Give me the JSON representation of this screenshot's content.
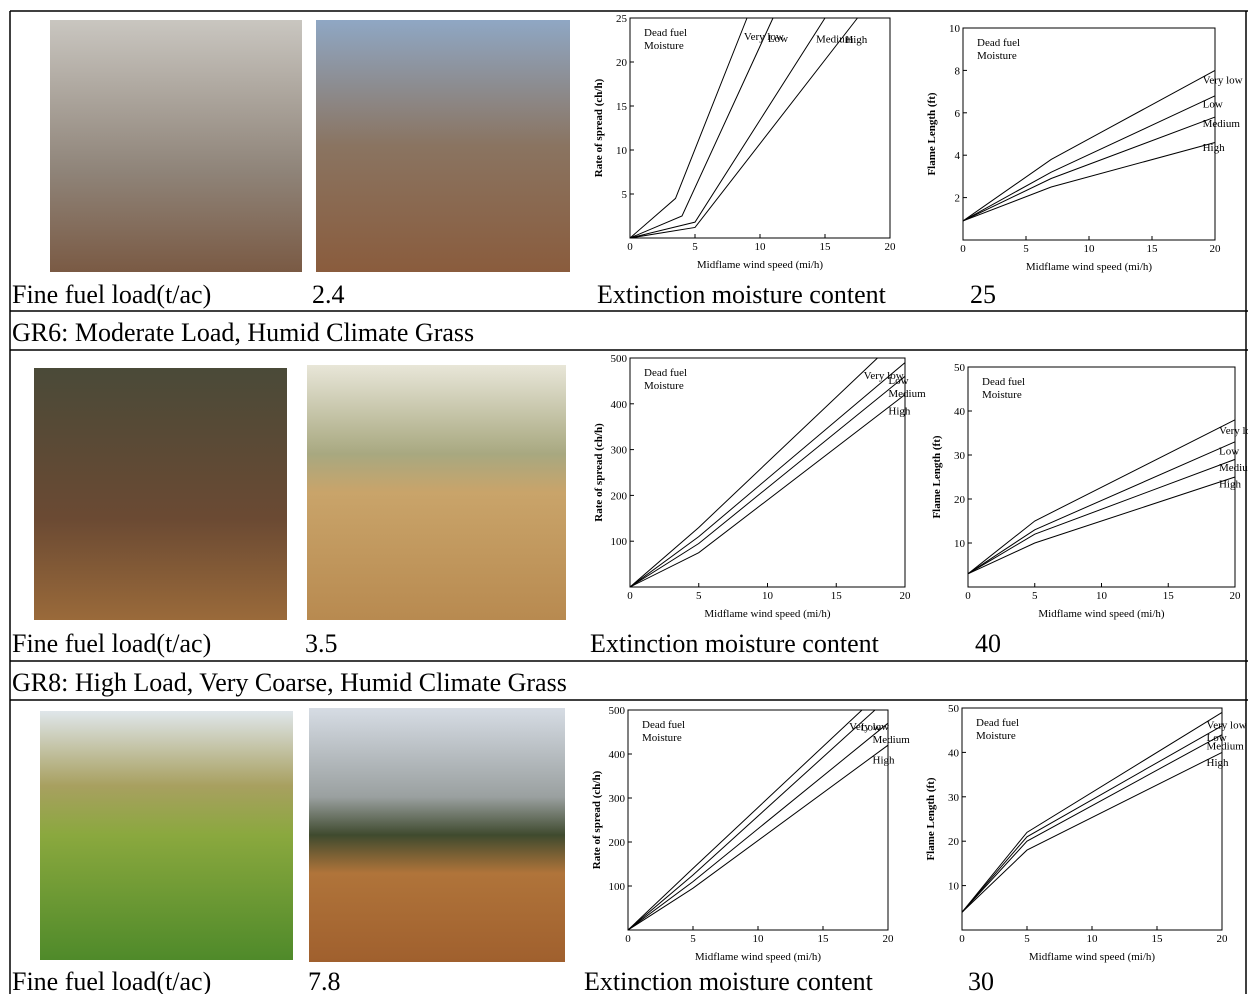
{
  "headings": [
    "GR6: Moderate Load, Humid Climate Grass",
    "GR8: High Load, Very Coarse, Humid Climate Grass"
  ],
  "rows": [
    {
      "fuel_load_label": "Fine fuel load(t/ac)",
      "fuel_load": 2.4,
      "extinction_label": "Extinction moisture content",
      "extinction": 25
    },
    {
      "fuel_load_label": "Fine fuel load(t/ac)",
      "fuel_load": 3.5,
      "extinction_label": "Extinction moisture content",
      "extinction": 40
    },
    {
      "fuel_load_label": "Fine fuel load(t/ac)",
      "fuel_load": 7.8,
      "extinction_label": "Extinction moisture content",
      "extinction": 30
    }
  ],
  "chart_data": [
    {
      "type": "line",
      "xlabel": "Midflame wind speed (mi/h)",
      "ylabel": "Rate of spread (ch/h)",
      "legend_title": [
        "Dead fuel",
        "Moisture"
      ],
      "xlim": [
        0,
        20
      ],
      "ylim": [
        0,
        25
      ],
      "xticks": [
        0,
        5,
        10,
        15,
        20
      ],
      "yticks": [
        5,
        10,
        15,
        20,
        25
      ],
      "series": [
        {
          "name": "Very low",
          "color": "#000000",
          "x": [
            0,
            3.5,
            9
          ],
          "values": [
            0,
            4.5,
            25
          ]
        },
        {
          "name": "Low",
          "color": "#000000",
          "x": [
            0,
            4,
            11
          ],
          "values": [
            0,
            2.5,
            25
          ]
        },
        {
          "name": "Medium",
          "color": "#000000",
          "x": [
            0,
            5,
            15
          ],
          "values": [
            0,
            1.8,
            25
          ]
        },
        {
          "name": "High",
          "color": "#000000",
          "x": [
            0,
            5,
            17.5
          ],
          "values": [
            0,
            1.2,
            25
          ]
        }
      ]
    },
    {
      "type": "line",
      "xlabel": "Midflame wind speed (mi/h)",
      "ylabel": "Flame Length (ft)",
      "legend_title": [
        "Dead fuel",
        "Moisture"
      ],
      "xlim": [
        0,
        20
      ],
      "ylim": [
        0,
        10
      ],
      "xticks": [
        0,
        5,
        10,
        15,
        20
      ],
      "yticks": [
        2,
        4,
        6,
        8,
        10
      ],
      "series": [
        {
          "name": "Very low",
          "color": "#000000",
          "x": [
            0,
            7,
            20
          ],
          "values": [
            0.9,
            3.8,
            8
          ]
        },
        {
          "name": "Low",
          "color": "#000000",
          "x": [
            0,
            7,
            20
          ],
          "values": [
            0.9,
            3.2,
            6.8
          ]
        },
        {
          "name": "Medium",
          "color": "#000000",
          "x": [
            0,
            7,
            20
          ],
          "values": [
            0.9,
            2.9,
            5.8
          ]
        },
        {
          "name": "High",
          "color": "#000000",
          "x": [
            0,
            7,
            20
          ],
          "values": [
            0.9,
            2.5,
            4.6
          ]
        }
      ]
    },
    {
      "type": "line",
      "xlabel": "Midflame wind speed (mi/h)",
      "ylabel": "Rate of spread (ch/h)",
      "legend_title": [
        "Dead fuel",
        "Moisture"
      ],
      "xlim": [
        0,
        20
      ],
      "ylim": [
        0,
        500
      ],
      "xticks": [
        0,
        5,
        10,
        15,
        20
      ],
      "yticks": [
        100,
        200,
        300,
        400,
        500
      ],
      "series": [
        {
          "name": "Very low",
          "color": "#000000",
          "x": [
            0,
            5,
            18
          ],
          "values": [
            0,
            130,
            500
          ]
        },
        {
          "name": "Low",
          "color": "#000000",
          "x": [
            0,
            5,
            20
          ],
          "values": [
            0,
            110,
            490
          ]
        },
        {
          "name": "Medium",
          "color": "#000000",
          "x": [
            0,
            5,
            20
          ],
          "values": [
            0,
            95,
            460
          ]
        },
        {
          "name": "High",
          "color": "#000000",
          "x": [
            0,
            5,
            20
          ],
          "values": [
            0,
            75,
            420
          ]
        }
      ]
    },
    {
      "type": "line",
      "xlabel": "Midflame wind speed (mi/h)",
      "ylabel": "Flame Length (ft)",
      "legend_title": [
        "Dead fuel",
        "Moisture"
      ],
      "xlim": [
        0,
        20
      ],
      "ylim": [
        0,
        50
      ],
      "xticks": [
        0,
        5,
        10,
        15,
        20
      ],
      "yticks": [
        10,
        20,
        30,
        40,
        50
      ],
      "series": [
        {
          "name": "Very low",
          "color": "#000000",
          "x": [
            0,
            5,
            20
          ],
          "values": [
            3,
            15,
            38
          ]
        },
        {
          "name": "Low",
          "color": "#000000",
          "x": [
            0,
            5,
            20
          ],
          "values": [
            3,
            13,
            33
          ]
        },
        {
          "name": "Medium",
          "color": "#000000",
          "x": [
            0,
            5,
            20
          ],
          "values": [
            3,
            12,
            29
          ]
        },
        {
          "name": "High",
          "color": "#000000",
          "x": [
            0,
            5,
            20
          ],
          "values": [
            3,
            10,
            25
          ]
        }
      ]
    },
    {
      "type": "line",
      "xlabel": "Midflame wind speed (mi/h)",
      "ylabel": "Rate of spread (ch/h)",
      "legend_title": [
        "Dead fuel",
        "Moisture"
      ],
      "xlim": [
        0,
        20
      ],
      "ylim": [
        0,
        500
      ],
      "xticks": [
        0,
        5,
        10,
        15,
        20
      ],
      "yticks": [
        100,
        200,
        300,
        400,
        500
      ],
      "series": [
        {
          "name": "Very low",
          "color": "#000000",
          "x": [
            0,
            5,
            18
          ],
          "values": [
            0,
            140,
            500
          ]
        },
        {
          "name": "Low",
          "color": "#000000",
          "x": [
            0,
            5,
            19
          ],
          "values": [
            0,
            125,
            500
          ]
        },
        {
          "name": "Medium",
          "color": "#000000",
          "x": [
            0,
            5,
            20
          ],
          "values": [
            0,
            110,
            470
          ]
        },
        {
          "name": "High",
          "color": "#000000",
          "x": [
            0,
            5,
            20
          ],
          "values": [
            0,
            95,
            420
          ]
        }
      ]
    },
    {
      "type": "line",
      "xlabel": "Midflame wind speed (mi/h)",
      "ylabel": "Flame Length (ft)",
      "legend_title": [
        "Dead fuel",
        "Moisture"
      ],
      "xlim": [
        0,
        20
      ],
      "ylim": [
        0,
        50
      ],
      "xticks": [
        0,
        5,
        10,
        15,
        20
      ],
      "yticks": [
        10,
        20,
        30,
        40,
        50
      ],
      "series": [
        {
          "name": "Very low",
          "color": "#000000",
          "x": [
            0,
            5,
            20
          ],
          "values": [
            4,
            22,
            49
          ]
        },
        {
          "name": "Low",
          "color": "#000000",
          "x": [
            0,
            5,
            20
          ],
          "values": [
            4,
            21,
            46
          ]
        },
        {
          "name": "Medium",
          "color": "#000000",
          "x": [
            0,
            5,
            20
          ],
          "values": [
            4,
            20,
            44
          ]
        },
        {
          "name": "High",
          "color": "#000000",
          "x": [
            0,
            5,
            20
          ],
          "values": [
            4,
            18,
            40
          ]
        }
      ]
    }
  ]
}
